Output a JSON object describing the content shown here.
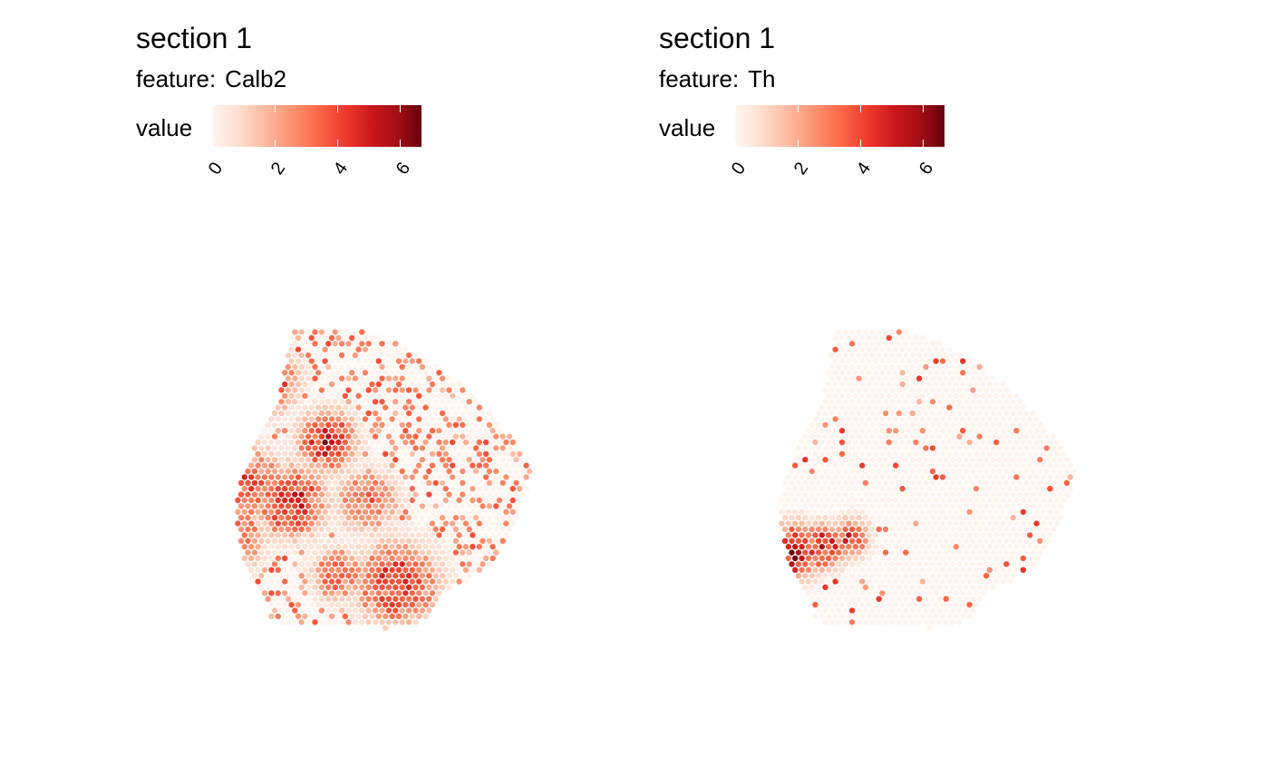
{
  "chart_data": [
    {
      "type": "scatter",
      "title": "section 1",
      "subtitle_label": "feature:",
      "feature": "Calb2",
      "legend": {
        "title": "value",
        "ticks": [
          "0",
          "2",
          "4",
          "6"
        ],
        "range": [
          0,
          6.7
        ],
        "placement": "top-left"
      },
      "colorscale": [
        "#fff5f0",
        "#fee0d2",
        "#fcbba1",
        "#fc9272",
        "#fb6a4a",
        "#ef3b2c",
        "#cb181d",
        "#a50f15",
        "#67000d"
      ],
      "hotspots": [
        {
          "x": 0.11,
          "y": 0.18,
          "r": 0.1,
          "v": 5.6
        },
        {
          "x": 0.32,
          "y": 0.38,
          "r": 0.09,
          "v": 5.8
        },
        {
          "x": 0.2,
          "y": 0.58,
          "r": 0.11,
          "v": 5.4
        },
        {
          "x": 0.0,
          "y": 0.7,
          "r": 0.1,
          "v": 4.5
        },
        {
          "x": 0.05,
          "y": 0.52,
          "r": 0.12,
          "v": 4.2
        },
        {
          "x": 0.55,
          "y": 0.85,
          "r": 0.13,
          "v": 5.0
        },
        {
          "x": 0.35,
          "y": 0.82,
          "r": 0.08,
          "v": 4.0
        },
        {
          "x": 0.45,
          "y": 0.58,
          "r": 0.1,
          "v": 3.6
        }
      ],
      "background_density": 0.38,
      "background_level": 3.0
    },
    {
      "type": "scatter",
      "title": "section 1",
      "subtitle_label": "feature:",
      "feature": "Th",
      "legend": {
        "title": "value",
        "ticks": [
          "0",
          "2",
          "4",
          "6"
        ],
        "range": [
          0,
          6.7
        ],
        "placement": "top-left"
      },
      "colorscale": [
        "#fff5f0",
        "#fee0d2",
        "#fcbba1",
        "#fc9272",
        "#fb6a4a",
        "#ef3b2c",
        "#cb181d",
        "#a50f15",
        "#67000d"
      ],
      "hotspots": [
        {
          "x": 0.05,
          "y": 0.75,
          "r": 0.09,
          "v": 6.3
        },
        {
          "x": 0.16,
          "y": 0.73,
          "r": 0.07,
          "v": 5.5
        },
        {
          "x": 0.25,
          "y": 0.7,
          "r": 0.06,
          "v": 4.8
        }
      ],
      "background_density": 0.07,
      "background_level": 3.4
    }
  ]
}
